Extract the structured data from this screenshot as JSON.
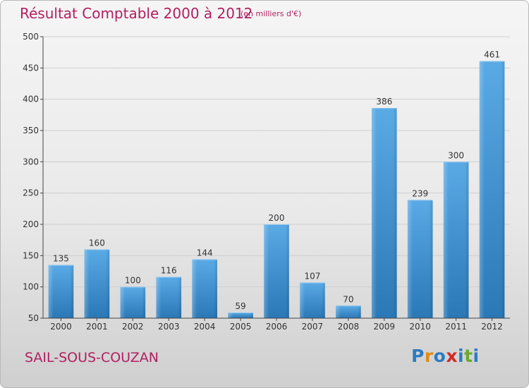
{
  "title": "Résultat Comptable 2000 à 2012",
  "subtitle": "(en milliers d'€)",
  "commune": "SAIL-SOUS-COUZAN",
  "logo": {
    "letters": [
      "P",
      "r",
      "o",
      "x",
      "i",
      "t",
      "i"
    ],
    "colors": [
      "#2c7cc0",
      "#e08a1a",
      "#2c7cc0",
      "#d02a2a",
      "#2c7cc0",
      "#6aaa2c",
      "#2c7cc0"
    ]
  },
  "colors": {
    "title": "#b02060",
    "bar_top": "#5aaae6",
    "bar_bottom": "#2a78b6",
    "axis": "#444444",
    "grid": "#cfcfcf"
  },
  "chart_data": {
    "type": "bar",
    "categories": [
      "2000",
      "2001",
      "2002",
      "2003",
      "2004",
      "2005",
      "2006",
      "2007",
      "2008",
      "2009",
      "2010",
      "2011",
      "2012"
    ],
    "values": [
      135,
      160,
      100,
      116,
      144,
      59,
      200,
      107,
      70,
      386,
      239,
      300,
      461
    ],
    "ylim": [
      50,
      500
    ],
    "yticks": [
      50,
      100,
      150,
      200,
      250,
      300,
      350,
      400,
      450,
      500
    ],
    "title": "Résultat Comptable 2000 à 2012",
    "xlabel": "",
    "ylabel": "",
    "grid": true
  }
}
